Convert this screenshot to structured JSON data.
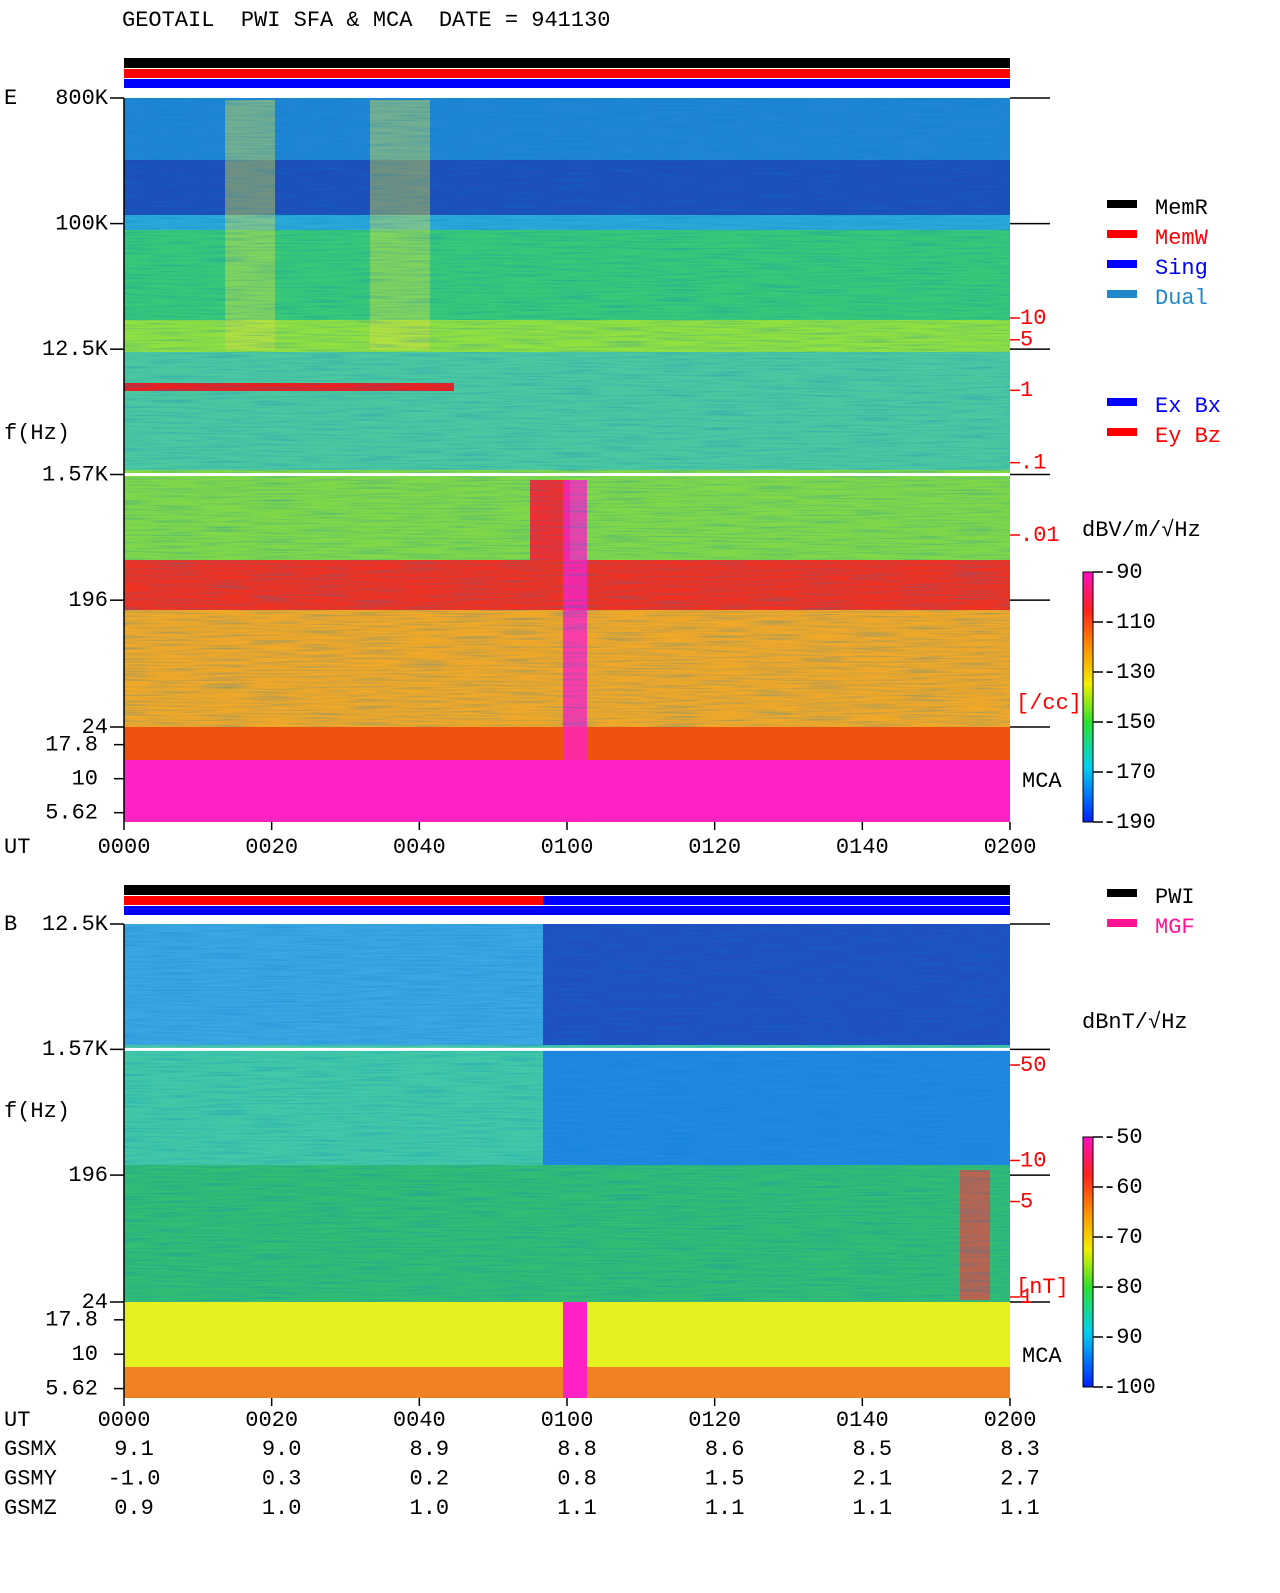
{
  "title": "GEOTAIL  PWI SFA & MCA  DATE = 941130",
  "chart_data": [
    {
      "type": "spectrogram",
      "panel": "E",
      "ylabel": "f(Hz)",
      "xlabel": "UT",
      "yscale": "log",
      "ylim": [
        24,
        800000
      ],
      "yticks": [
        {
          "value": 800000,
          "label": "800K"
        },
        {
          "value": 100000,
          "label": "100K"
        },
        {
          "value": 12500,
          "label": "12.5K"
        },
        {
          "value": 1570,
          "label": "1.57K"
        },
        196,
        24
      ],
      "mca_label": "MCA",
      "mca_ylim": [
        4.8,
        24
      ],
      "mca_yticks": [
        17.8,
        10,
        5.62
      ],
      "xlim": [
        0,
        120
      ],
      "xticks": [
        {
          "value": 0,
          "label": "0000"
        },
        {
          "value": 20,
          "label": "0020"
        },
        {
          "value": 40,
          "label": "0040"
        },
        {
          "value": 60,
          "label": "0100"
        },
        {
          "value": 80,
          "label": "0120"
        },
        {
          "value": 100,
          "label": "0140"
        },
        {
          "value": 120,
          "label": "0200"
        }
      ],
      "density_label": "[/cc]",
      "density_lim": [
        0.01,
        10
      ],
      "density_ticks": [
        10,
        5,
        1,
        {
          "value": 0.1,
          "label": ".1"
        },
        {
          "value": 0.01,
          "label": ".01"
        }
      ],
      "colorbar_label": "dBV/m/√Hz",
      "clim": [
        -190,
        -90
      ],
      "cticks": [
        -90,
        -110,
        -130,
        -150,
        -170,
        -190
      ],
      "legend": [
        {
          "name": "MemR",
          "color": "#000000"
        },
        {
          "name": "MemW",
          "color": "#ff0000"
        },
        {
          "name": "Sing",
          "color": "#0000ff"
        },
        {
          "name": "Dual",
          "color": "#1e88c8"
        }
      ],
      "legend2": [
        {
          "name": "Ex Bx",
          "color": "#0000ff"
        },
        {
          "name": "Ey Bz",
          "color": "#ff0000"
        }
      ]
    },
    {
      "type": "spectrogram",
      "panel": "B",
      "ylabel": "f(Hz)",
      "xlabel": "UT",
      "yscale": "log",
      "ylim": [
        24,
        12500
      ],
      "yticks": [
        {
          "value": 12500,
          "label": "12.5K"
        },
        {
          "value": 1570,
          "label": "1.57K"
        },
        196,
        24
      ],
      "mca_label": "MCA",
      "mca_ylim": [
        4.8,
        24
      ],
      "mca_yticks": [
        17.8,
        10,
        5.62
      ],
      "xlim": [
        0,
        120
      ],
      "xticks": [
        {
          "value": 0,
          "label": "0000"
        },
        {
          "value": 20,
          "label": "0020"
        },
        {
          "value": 40,
          "label": "0040"
        },
        {
          "value": 60,
          "label": "0100"
        },
        {
          "value": 80,
          "label": "0120"
        },
        {
          "value": 100,
          "label": "0140"
        },
        {
          "value": 120,
          "label": "0200"
        }
      ],
      "density_label": "[nT]",
      "density_lim": [
        1,
        50
      ],
      "density_ticks": [
        50,
        10,
        5,
        1
      ],
      "colorbar_label": "dBnT/√Hz",
      "clim": [
        -100,
        -50
      ],
      "cticks": [
        -50,
        -60,
        -70,
        -80,
        -90,
        -100
      ],
      "legend": [
        {
          "name": "PWI",
          "color": "#000000"
        },
        {
          "name": "MGF",
          "color": "#ff1493"
        }
      ]
    }
  ],
  "orbit": {
    "rows": [
      {
        "label": "GSMX",
        "values": [
          "9.1",
          "9.0",
          "8.9",
          "8.8",
          "8.6",
          "8.5",
          "8.3"
        ]
      },
      {
        "label": "GSMY",
        "values": [
          "-1.0",
          "0.3",
          "0.2",
          "0.8",
          "1.5",
          "2.1",
          "2.7"
        ]
      },
      {
        "label": "GSMZ",
        "values": [
          "0.9",
          "1.0",
          "1.0",
          "1.1",
          "1.1",
          "1.1",
          "1.1"
        ]
      }
    ]
  }
}
